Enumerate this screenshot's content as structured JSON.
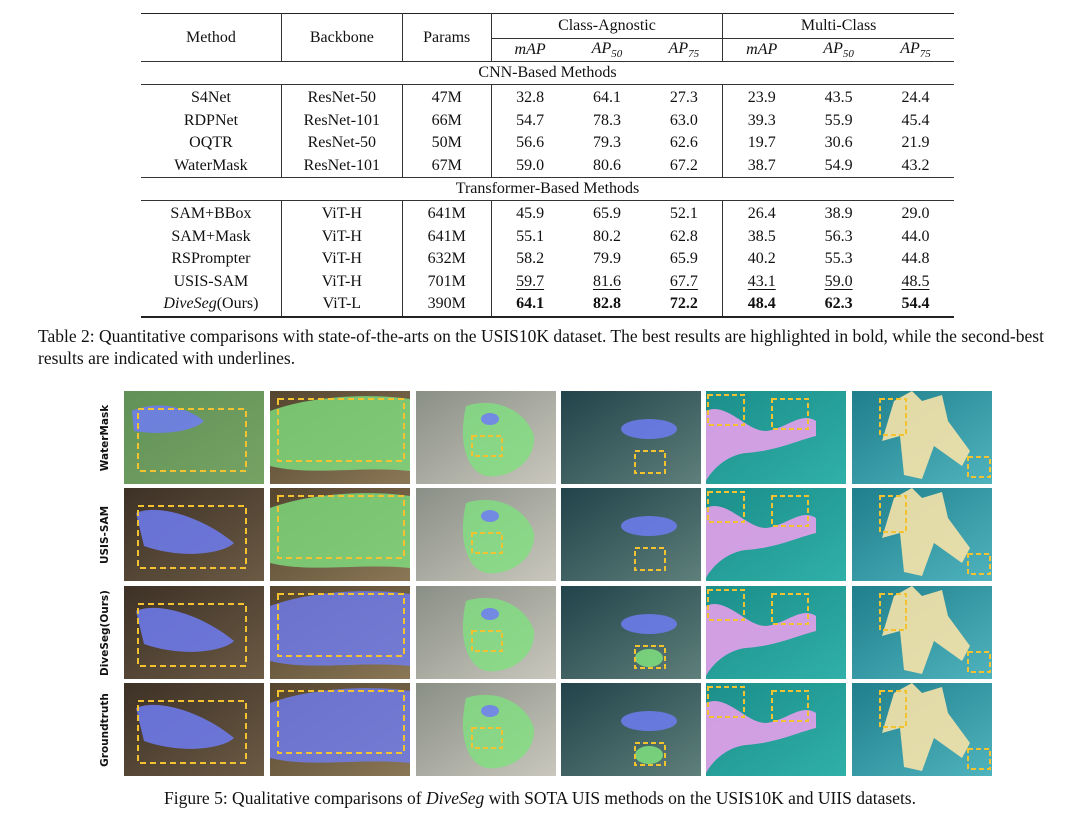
{
  "table": {
    "headers": {
      "method": "Method",
      "backbone": "Backbone",
      "params": "Params",
      "class_agnostic": "Class-Agnostic",
      "multi_class": "Multi-Class",
      "map": "mAP",
      "ap": "AP",
      "sub50": "50",
      "sub75": "75"
    },
    "sections": [
      {
        "title": "CNN-Based Methods",
        "rows": [
          {
            "method": "S4Net",
            "backbone": "ResNet-50",
            "params": "47M",
            "vals": [
              "32.8",
              "64.1",
              "27.3",
              "23.9",
              "43.5",
              "24.4"
            ]
          },
          {
            "method": "RDPNet",
            "backbone": "ResNet-101",
            "params": "66M",
            "vals": [
              "54.7",
              "78.3",
              "63.0",
              "39.3",
              "55.9",
              "45.4"
            ]
          },
          {
            "method": "OQTR",
            "backbone": "ResNet-50",
            "params": "50M",
            "vals": [
              "56.6",
              "79.3",
              "62.6",
              "19.7",
              "30.6",
              "21.9"
            ]
          },
          {
            "method": "WaterMask",
            "backbone": "ResNet-101",
            "params": "67M",
            "vals": [
              "59.0",
              "80.6",
              "67.2",
              "38.7",
              "54.9",
              "43.2"
            ]
          }
        ]
      },
      {
        "title": "Transformer-Based Methods",
        "rows": [
          {
            "method": "SAM+BBox",
            "backbone": "ViT-H",
            "params": "641M",
            "vals": [
              "45.9",
              "65.9",
              "52.1",
              "26.4",
              "38.9",
              "29.0"
            ]
          },
          {
            "method": "SAM+Mask",
            "backbone": "ViT-H",
            "params": "641M",
            "vals": [
              "55.1",
              "80.2",
              "62.8",
              "38.5",
              "56.3",
              "44.0"
            ]
          },
          {
            "method": "RSPrompter",
            "backbone": "ViT-H",
            "params": "632M",
            "vals": [
              "58.2",
              "79.9",
              "65.9",
              "40.2",
              "55.3",
              "44.8"
            ]
          },
          {
            "method": "USIS-SAM",
            "backbone": "ViT-H",
            "params": "701M",
            "vals": [
              "59.7",
              "81.6",
              "67.7",
              "43.1",
              "59.0",
              "48.5"
            ],
            "style": "underline"
          },
          {
            "method": "DiveSeg",
            "method_suffix": "(Ours)",
            "backbone": "ViT-L",
            "params": "390M",
            "vals": [
              "64.1",
              "82.8",
              "72.2",
              "48.4",
              "62.3",
              "54.4"
            ],
            "style": "bold"
          }
        ]
      }
    ]
  },
  "table_caption": "Table 2: Quantitative comparisons with state-of-the-arts on the USIS10K dataset. The best results are highlighted in bold, while the second-best results are indicated with underlines.",
  "figure": {
    "row_labels": [
      "WaterMask",
      "USIS-SAM",
      "DiveSeg(Ours)",
      "Groundtruth"
    ],
    "mask_colors": {
      "blue": "#6f7df2",
      "green": "#7fe07f",
      "pink": "#f0a0f0",
      "yellow": "#f6e2a8",
      "box": "#f2c230"
    },
    "columns": 6
  },
  "figure_caption": {
    "prefix": "Figure 5: Qualitative comparisons of ",
    "name": "DiveSeg",
    "suffix": " with SOTA UIS methods on the USIS10K and UIIS datasets."
  }
}
